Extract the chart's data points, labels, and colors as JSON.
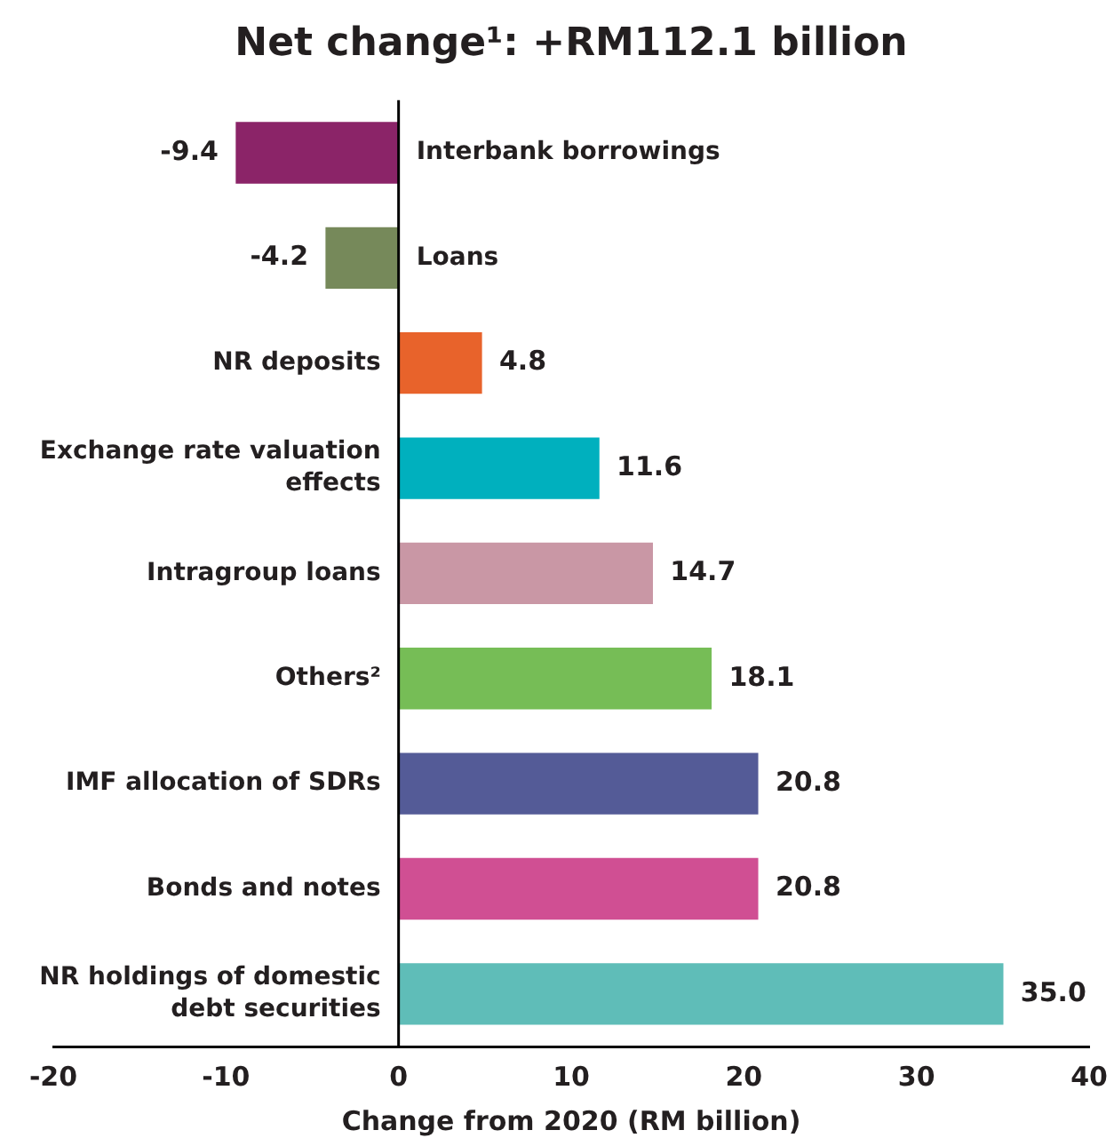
{
  "chart_data": {
    "type": "bar",
    "orientation": "horizontal",
    "title": "Net change¹: +RM112.1 billion",
    "xlabel": "Change from 2020 (RM billion)",
    "categories": [
      "Interbank borrowings",
      "Loans",
      "NR deposits",
      "Exchange rate valuation effects",
      "Intragroup loans",
      "Others²",
      "IMF allocation of SDRs",
      "Bonds and notes",
      "NR holdings of domestic debt securities"
    ],
    "values": [
      -9.4,
      -4.2,
      4.8,
      11.6,
      14.7,
      18.1,
      20.8,
      20.8,
      35.0
    ],
    "value_labels": [
      "-9.4",
      "-4.2",
      "4.8",
      "11.6",
      "14.7",
      "18.1",
      "20.8",
      "20.8",
      "35.0"
    ],
    "colors": [
      "#8b2468",
      "#76895a",
      "#e8632b",
      "#00b0be",
      "#c997a5",
      "#76bd56",
      "#545b97",
      "#d04f93",
      "#5fbdb8"
    ],
    "xlim": [
      -20,
      40
    ],
    "xticks": [
      -20,
      -10,
      0,
      10,
      20,
      30,
      40
    ],
    "data_labels": true,
    "grid": false,
    "legend": false
  }
}
